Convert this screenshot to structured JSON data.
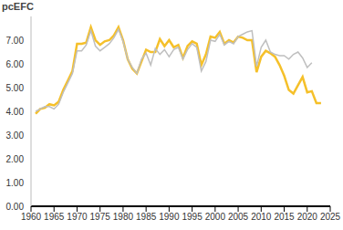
{
  "chart_data": {
    "type": "line",
    "y_label": "pcEFC",
    "x": [
      1961,
      1962,
      1963,
      1964,
      1965,
      1966,
      1967,
      1968,
      1969,
      1970,
      1971,
      1972,
      1973,
      1974,
      1975,
      1976,
      1977,
      1978,
      1979,
      1980,
      1981,
      1982,
      1983,
      1984,
      1985,
      1986,
      1987,
      1988,
      1989,
      1990,
      1991,
      1992,
      1993,
      1994,
      1995,
      1996,
      1997,
      1998,
      1999,
      2000,
      2001,
      2002,
      2003,
      2004,
      2005,
      2006,
      2007,
      2008,
      2009,
      2010,
      2011,
      2012,
      2013,
      2014,
      2015,
      2016,
      2017,
      2018,
      2019,
      2020,
      2021,
      2022,
      2023
    ],
    "series": [
      {
        "color": "#f5c02a",
        "values": [
          3.9,
          4.1,
          4.15,
          4.3,
          4.25,
          4.4,
          4.9,
          5.3,
          5.7,
          6.85,
          6.85,
          6.9,
          7.55,
          7.0,
          6.8,
          6.95,
          7.0,
          7.2,
          7.55,
          7.0,
          6.2,
          5.8,
          5.6,
          6.1,
          6.6,
          6.5,
          6.5,
          7.05,
          6.75,
          7.0,
          6.7,
          6.8,
          6.25,
          6.75,
          6.95,
          6.85,
          5.95,
          6.4,
          7.15,
          7.1,
          7.35,
          6.85,
          7.0,
          6.9,
          7.15,
          7.1,
          7.0,
          7.0,
          5.65,
          6.3,
          6.55,
          6.45,
          6.3,
          5.95,
          5.5,
          4.9,
          4.75,
          5.1,
          5.45,
          4.8,
          4.85,
          4.35,
          4.35
        ]
      },
      {
        "color": "#bfbfbf",
        "values": [
          4.0,
          4.1,
          4.2,
          4.2,
          4.1,
          4.3,
          4.8,
          5.2,
          5.6,
          6.55,
          6.55,
          6.8,
          7.4,
          6.75,
          6.55,
          6.7,
          6.85,
          7.1,
          7.45,
          6.95,
          6.2,
          5.85,
          5.6,
          6.2,
          6.45,
          5.95,
          6.65,
          6.4,
          6.6,
          6.3,
          6.6,
          6.7,
          6.2,
          6.6,
          6.85,
          6.7,
          5.7,
          6.1,
          7.0,
          6.95,
          7.25,
          6.8,
          6.95,
          6.85,
          7.15,
          7.25,
          7.35,
          7.4,
          5.9,
          6.7,
          7.0,
          6.5,
          6.4,
          6.35,
          6.35,
          6.2,
          6.4,
          6.5,
          6.25,
          5.85,
          6.05,
          null,
          null
        ]
      }
    ],
    "xlim": [
      1960,
      2025
    ],
    "xticks": [
      1960,
      1965,
      1970,
      1975,
      1980,
      1985,
      1990,
      1995,
      2000,
      2005,
      2010,
      2015,
      2020,
      2025
    ],
    "ylim": [
      0,
      8
    ],
    "yticks": [
      {
        "value": 0,
        "label": "0.00"
      },
      {
        "value": 1,
        "label": "1.00"
      },
      {
        "value": 2,
        "label": "2.00"
      },
      {
        "value": 3,
        "label": "3.00"
      },
      {
        "value": 4,
        "label": "4.00"
      },
      {
        "value": 5,
        "label": "5.00"
      },
      {
        "value": 6,
        "label": "6.00"
      },
      {
        "value": 7,
        "label": "7.00"
      }
    ],
    "grid": false
  }
}
